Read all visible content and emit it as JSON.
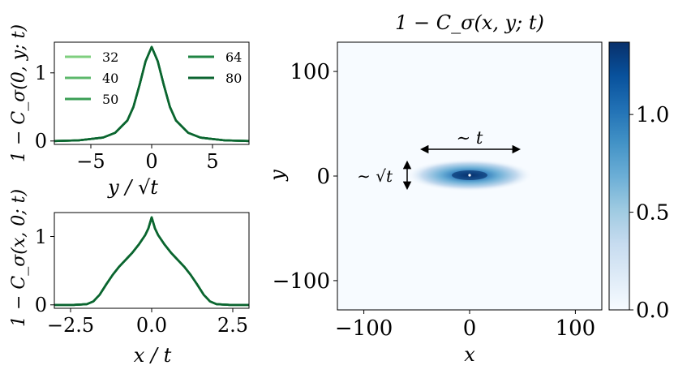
{
  "figure": {
    "panel_a": {
      "ylabel": "1 − C_σ(0, y; t)",
      "xlabel": "y / √t",
      "xlim": [
        -8,
        8
      ],
      "ylim": [
        -0.05,
        1.45
      ],
      "xticks": [
        -5,
        0,
        5
      ],
      "xtick_labels": [
        "−5",
        "0",
        "5"
      ],
      "yticks": [
        0,
        1
      ],
      "ytick_labels": [
        "0",
        "1"
      ]
    },
    "panel_b": {
      "ylabel": "1 − C_σ(x, 0; t)",
      "xlabel": "x / t",
      "xlim": [
        -3,
        3
      ],
      "ylim": [
        -0.05,
        1.35
      ],
      "xticks": [
        -2.5,
        0,
        2.5
      ],
      "xtick_labels": [
        "−2.5",
        "0.0",
        "2.5"
      ],
      "yticks": [
        0,
        1
      ],
      "ytick_labels": [
        "0",
        "1"
      ]
    },
    "heatmap": {
      "title": "1 − C_σ(x, y; t)",
      "xlabel": "x",
      "ylabel": "y",
      "xlim": [
        -125,
        125
      ],
      "ylim": [
        -128,
        128
      ],
      "xticks": [
        -100,
        0,
        100
      ],
      "xtick_labels": [
        "−100",
        "0",
        "100"
      ],
      "yticks": [
        100,
        0,
        -100
      ],
      "ytick_labels": [
        "100",
        "0",
        "−100"
      ],
      "annotation_t": "∼ t",
      "annotation_sqrt_t": "∼ √t",
      "colormap": "Blues"
    },
    "colorbar": {
      "range": [
        0,
        1.37
      ],
      "ticks": [
        0,
        0.5,
        1.0
      ],
      "tick_labels": [
        "0.0",
        "0.5",
        "1.0"
      ]
    },
    "legend": {
      "placement": "upper panel, top",
      "entries": [
        "32",
        "40",
        "50",
        "64",
        "80"
      ]
    },
    "colors": [
      "#7fcf7f",
      "#5cb86b",
      "#3a9e55",
      "#1f8443",
      "#0b6430"
    ]
  },
  "chart_data": [
    {
      "type": "line",
      "xlabel": "y / √t",
      "ylabel": "1 − C_σ(0, y; t)",
      "xlim": [
        -8,
        8
      ],
      "ylim": [
        -0.05,
        1.45
      ],
      "legend": "top, inside axes",
      "series": [
        {
          "name": "32",
          "x": [
            -8,
            -6,
            -4,
            -3,
            -2,
            -1.5,
            -1,
            -0.5,
            0,
            0.5,
            1,
            1.5,
            2,
            3,
            4,
            6,
            8
          ],
          "y": [
            0.0,
            0.01,
            0.05,
            0.12,
            0.3,
            0.5,
            0.82,
            1.17,
            1.38,
            1.17,
            0.82,
            0.5,
            0.3,
            0.12,
            0.05,
            0.01,
            0.0
          ]
        },
        {
          "name": "40",
          "x": [
            -8,
            -6,
            -4,
            -3,
            -2,
            -1.5,
            -1,
            -0.5,
            0,
            0.5,
            1,
            1.5,
            2,
            3,
            4,
            6,
            8
          ],
          "y": [
            0.0,
            0.01,
            0.05,
            0.12,
            0.3,
            0.5,
            0.82,
            1.17,
            1.38,
            1.17,
            0.82,
            0.5,
            0.3,
            0.12,
            0.05,
            0.01,
            0.0
          ]
        },
        {
          "name": "50",
          "x": [
            -8,
            -6,
            -4,
            -3,
            -2,
            -1.5,
            -1,
            -0.5,
            0,
            0.5,
            1,
            1.5,
            2,
            3,
            4,
            6,
            8
          ],
          "y": [
            0.0,
            0.01,
            0.05,
            0.12,
            0.3,
            0.5,
            0.82,
            1.17,
            1.38,
            1.17,
            0.82,
            0.5,
            0.3,
            0.12,
            0.05,
            0.01,
            0.0
          ]
        },
        {
          "name": "64",
          "x": [
            -8,
            -6,
            -4,
            -3,
            -2,
            -1.5,
            -1,
            -0.5,
            0,
            0.5,
            1,
            1.5,
            2,
            3,
            4,
            6,
            8
          ],
          "y": [
            0.0,
            0.01,
            0.05,
            0.12,
            0.3,
            0.5,
            0.82,
            1.17,
            1.38,
            1.17,
            0.82,
            0.5,
            0.3,
            0.12,
            0.05,
            0.01,
            0.0
          ]
        },
        {
          "name": "80",
          "x": [
            -8,
            -6,
            -4,
            -3,
            -2,
            -1.5,
            -1,
            -0.5,
            0,
            0.5,
            1,
            1.5,
            2,
            3,
            4,
            6,
            8
          ],
          "y": [
            0.0,
            0.01,
            0.05,
            0.12,
            0.3,
            0.5,
            0.82,
            1.17,
            1.38,
            1.17,
            0.82,
            0.5,
            0.3,
            0.12,
            0.05,
            0.01,
            0.0
          ]
        }
      ]
    },
    {
      "type": "line",
      "xlabel": "x / t",
      "ylabel": "1 − C_σ(x, 0; t)",
      "xlim": [
        -3,
        3
      ],
      "ylim": [
        -0.05,
        1.35
      ],
      "series": [
        {
          "name": "32",
          "x": [
            -3,
            -2.4,
            -2.0,
            -1.8,
            -1.6,
            -1.4,
            -1.2,
            -1.0,
            -0.8,
            -0.6,
            -0.4,
            -0.2,
            -0.1,
            0,
            0.1,
            0.2,
            0.4,
            0.6,
            0.8,
            1.0,
            1.2,
            1.4,
            1.6,
            1.8,
            2.0,
            2.4,
            3
          ],
          "y": [
            0.0,
            0.0,
            0.01,
            0.05,
            0.15,
            0.3,
            0.44,
            0.56,
            0.66,
            0.76,
            0.88,
            1.02,
            1.12,
            1.28,
            1.12,
            1.02,
            0.88,
            0.76,
            0.66,
            0.56,
            0.44,
            0.3,
            0.15,
            0.05,
            0.01,
            0.0,
            0.0
          ]
        },
        {
          "name": "40",
          "x": [
            -3,
            -2.4,
            -2.0,
            -1.8,
            -1.6,
            -1.4,
            -1.2,
            -1.0,
            -0.8,
            -0.6,
            -0.4,
            -0.2,
            -0.1,
            0,
            0.1,
            0.2,
            0.4,
            0.6,
            0.8,
            1.0,
            1.2,
            1.4,
            1.6,
            1.8,
            2.0,
            2.4,
            3
          ],
          "y": [
            0.0,
            0.0,
            0.01,
            0.05,
            0.15,
            0.3,
            0.44,
            0.56,
            0.66,
            0.76,
            0.88,
            1.02,
            1.12,
            1.28,
            1.12,
            1.02,
            0.88,
            0.76,
            0.66,
            0.56,
            0.44,
            0.3,
            0.15,
            0.05,
            0.01,
            0.0,
            0.0
          ]
        },
        {
          "name": "50",
          "x": [
            -3,
            -2.4,
            -2.0,
            -1.8,
            -1.6,
            -1.4,
            -1.2,
            -1.0,
            -0.8,
            -0.6,
            -0.4,
            -0.2,
            -0.1,
            0,
            0.1,
            0.2,
            0.4,
            0.6,
            0.8,
            1.0,
            1.2,
            1.4,
            1.6,
            1.8,
            2.0,
            2.4,
            3
          ],
          "y": [
            0.0,
            0.0,
            0.01,
            0.05,
            0.15,
            0.3,
            0.44,
            0.56,
            0.66,
            0.76,
            0.88,
            1.02,
            1.12,
            1.28,
            1.12,
            1.02,
            0.88,
            0.76,
            0.66,
            0.56,
            0.44,
            0.3,
            0.15,
            0.05,
            0.01,
            0.0,
            0.0
          ]
        },
        {
          "name": "64",
          "x": [
            -3,
            -2.4,
            -2.0,
            -1.8,
            -1.6,
            -1.4,
            -1.2,
            -1.0,
            -0.8,
            -0.6,
            -0.4,
            -0.2,
            -0.1,
            0,
            0.1,
            0.2,
            0.4,
            0.6,
            0.8,
            1.0,
            1.2,
            1.4,
            1.6,
            1.8,
            2.0,
            2.4,
            3
          ],
          "y": [
            0.0,
            0.0,
            0.01,
            0.05,
            0.15,
            0.3,
            0.44,
            0.56,
            0.66,
            0.76,
            0.88,
            1.02,
            1.12,
            1.28,
            1.12,
            1.02,
            0.88,
            0.76,
            0.66,
            0.56,
            0.44,
            0.3,
            0.15,
            0.05,
            0.01,
            0.0,
            0.0
          ]
        },
        {
          "name": "80",
          "x": [
            -3,
            -2.4,
            -2.0,
            -1.8,
            -1.6,
            -1.4,
            -1.2,
            -1.0,
            -0.8,
            -0.6,
            -0.4,
            -0.2,
            -0.1,
            0,
            0.1,
            0.2,
            0.4,
            0.6,
            0.8,
            1.0,
            1.2,
            1.4,
            1.6,
            1.8,
            2.0,
            2.4,
            3
          ],
          "y": [
            0.0,
            0.0,
            0.01,
            0.05,
            0.15,
            0.3,
            0.44,
            0.56,
            0.66,
            0.76,
            0.88,
            1.02,
            1.12,
            1.28,
            1.12,
            1.02,
            0.88,
            0.76,
            0.66,
            0.56,
            0.44,
            0.3,
            0.15,
            0.05,
            0.01,
            0.0,
            0.0
          ]
        }
      ]
    },
    {
      "type": "heatmap",
      "title": "1 − C_σ(x, y; t)",
      "xlabel": "x",
      "ylabel": "y",
      "xlim": [
        -125,
        125
      ],
      "ylim": [
        -128,
        128
      ],
      "colorbar_range": [
        0,
        1.37
      ],
      "peak": {
        "x": 0,
        "y": 0,
        "value": 1.37
      },
      "extent_x": [
        -55,
        55
      ],
      "extent_y": [
        -12,
        12
      ]
    }
  ]
}
